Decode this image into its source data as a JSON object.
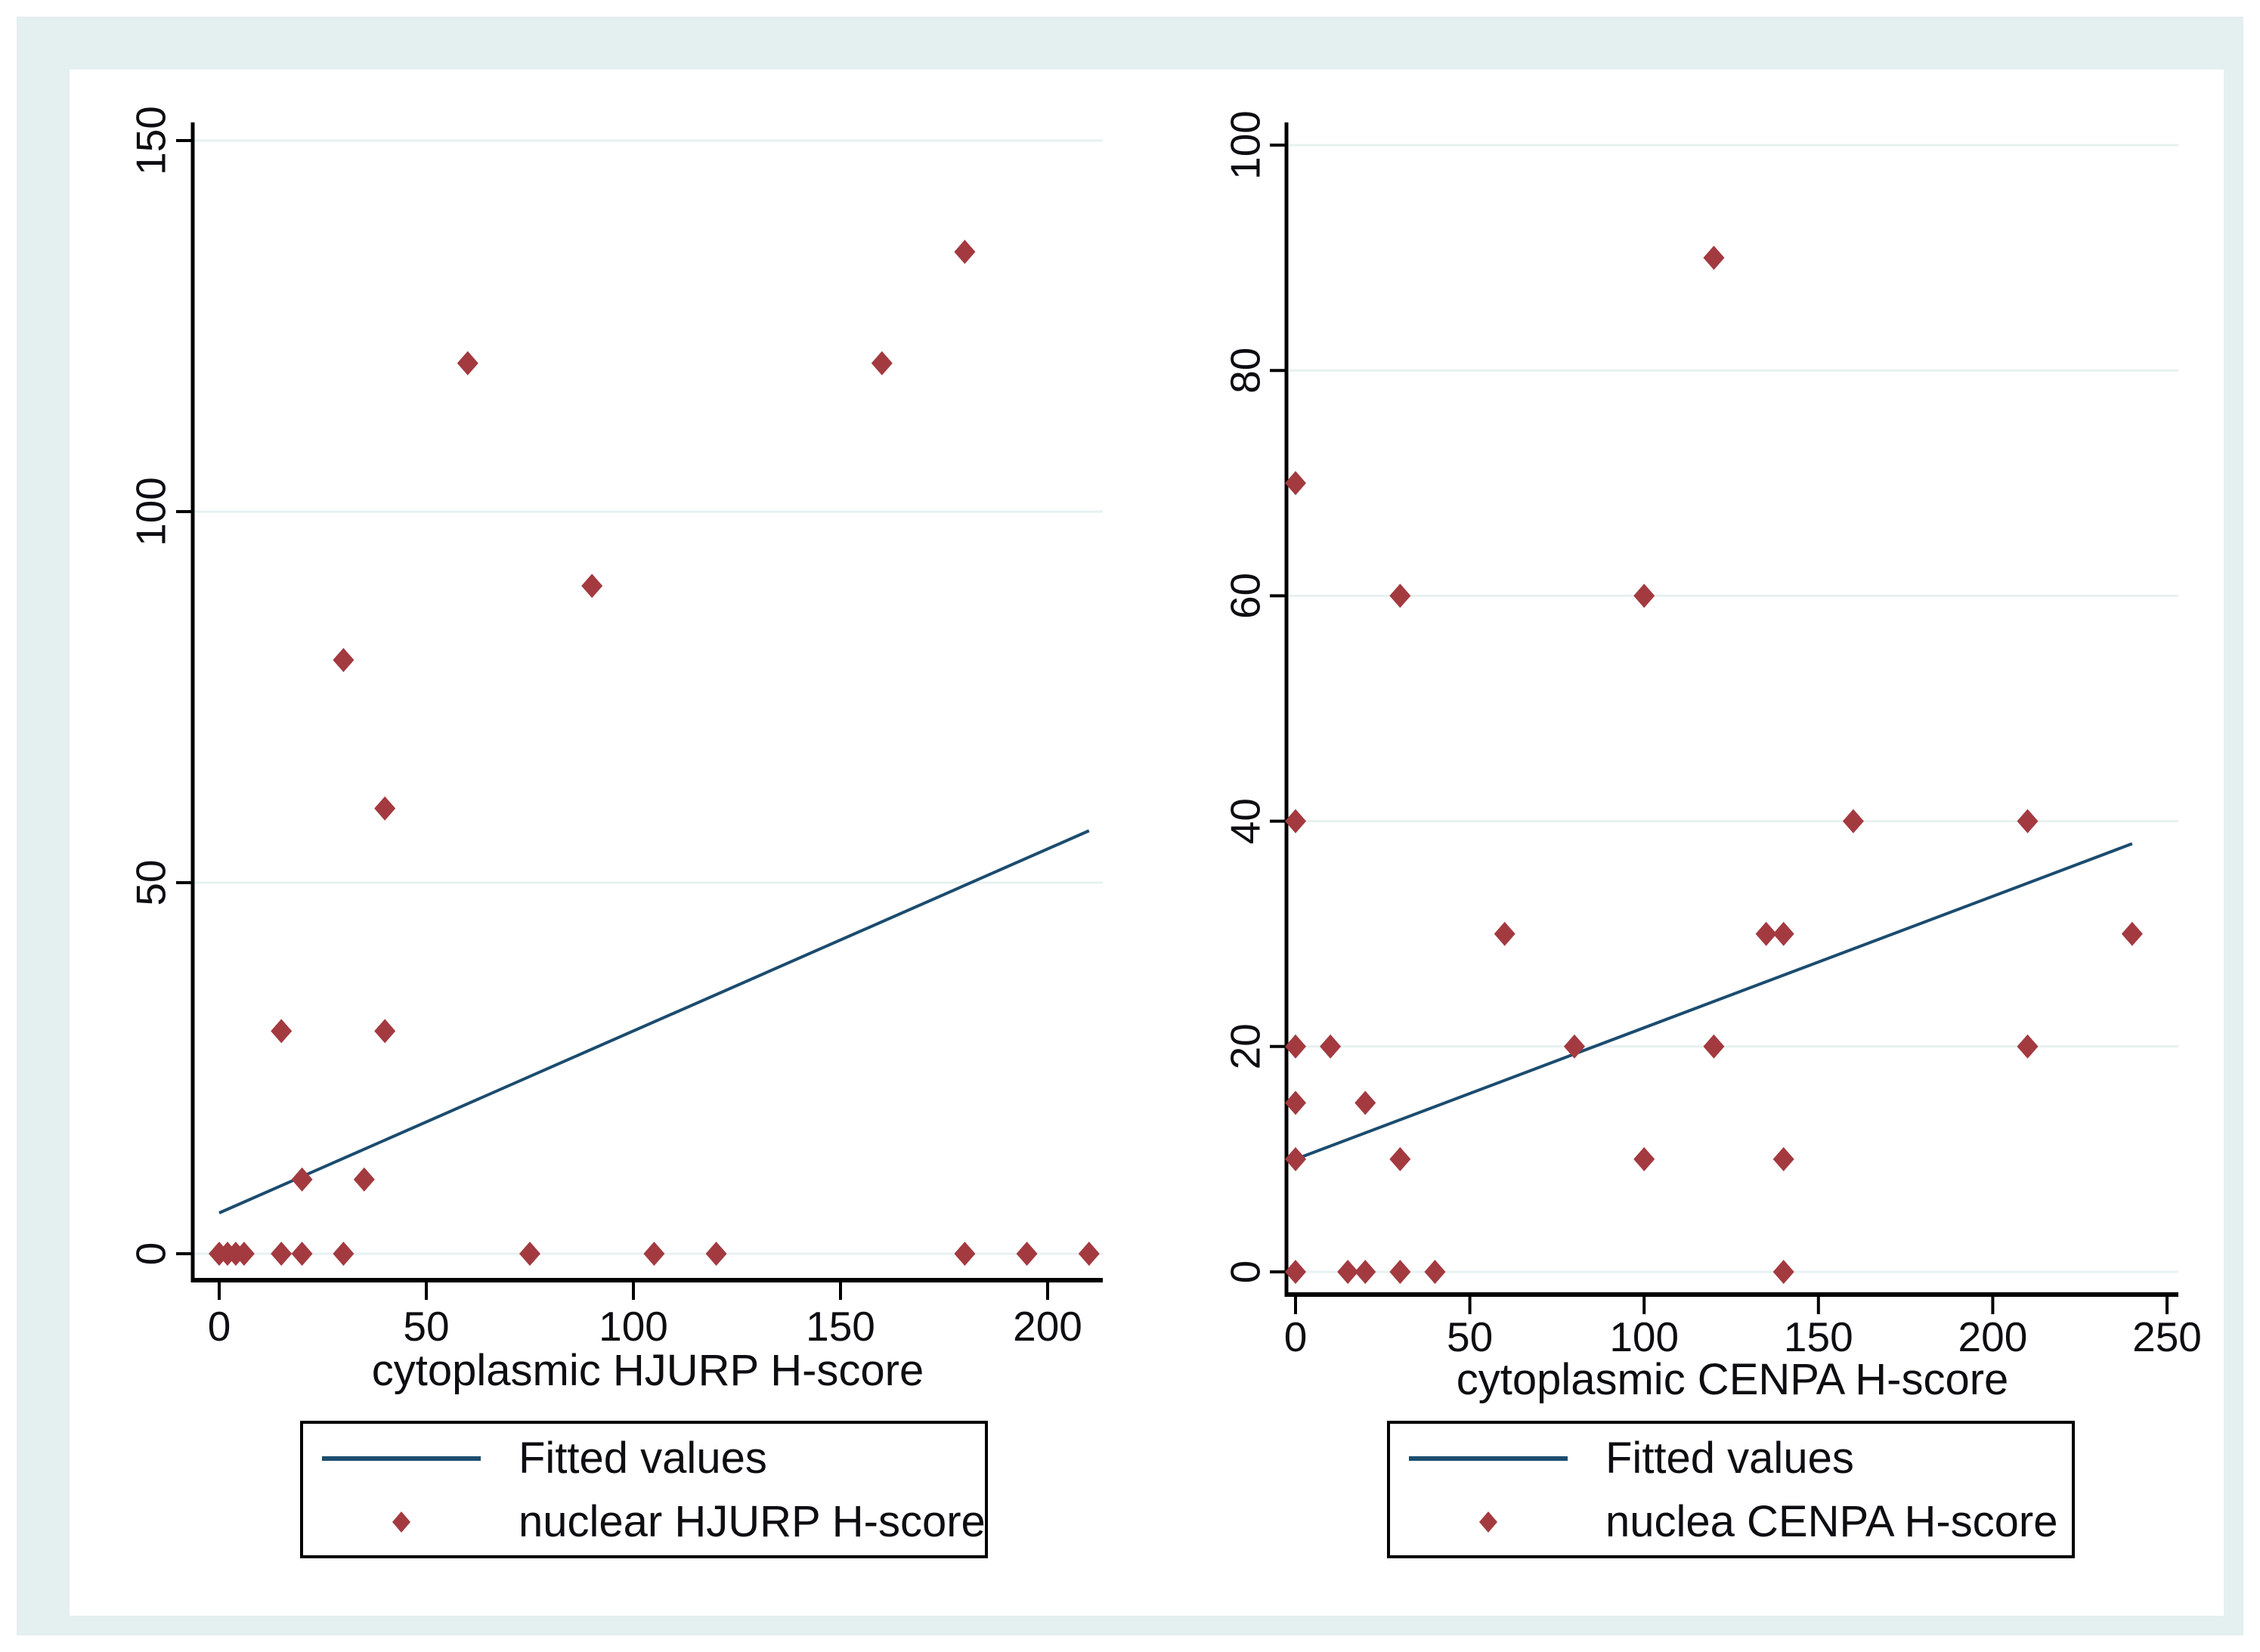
{
  "colors": {
    "frame_background": "#e4efef",
    "plot_background": "#ffffff",
    "gridline": "#e7f1f1",
    "axis": "#000000",
    "marker": "#a33a40",
    "fitted_line": "#1b4c6f",
    "text": "#0d0d12"
  },
  "chart_data": [
    {
      "type": "scatter",
      "title": "",
      "xlabel": "cytoplasmic HJURP H-score",
      "ylabel": "",
      "xlim": [
        0,
        210
      ],
      "ylim": [
        0,
        150
      ],
      "xticks": [
        0,
        50,
        100,
        150,
        200
      ],
      "yticks": [
        0,
        50,
        100,
        150
      ],
      "grid": "horizontal",
      "legend_position": "below",
      "series": [
        {
          "name": "Fitted values",
          "type": "line",
          "points": [
            [
              0,
              5.5
            ],
            [
              210,
              57
            ]
          ]
        },
        {
          "name": "nuclear HJURP H-score",
          "type": "scatter",
          "points": [
            [
              0,
              0
            ],
            [
              2,
              0
            ],
            [
              4,
              0
            ],
            [
              6,
              0
            ],
            [
              15,
              0
            ],
            [
              20,
              0
            ],
            [
              30,
              0
            ],
            [
              75,
              0
            ],
            [
              105,
              0
            ],
            [
              120,
              0
            ],
            [
              180,
              0
            ],
            [
              195,
              0
            ],
            [
              210,
              0
            ],
            [
              20,
              10
            ],
            [
              35,
              10
            ],
            [
              15,
              30
            ],
            [
              40,
              30
            ],
            [
              40,
              60
            ],
            [
              30,
              80
            ],
            [
              90,
              90
            ],
            [
              60,
              120
            ],
            [
              160,
              120
            ],
            [
              180,
              135
            ]
          ]
        }
      ]
    },
    {
      "type": "scatter",
      "title": "",
      "xlabel": "cytoplasmic CENPA H-score",
      "ylabel": "",
      "xlim": [
        0,
        250
      ],
      "ylim": [
        0,
        100
      ],
      "xticks": [
        0,
        50,
        100,
        150,
        200,
        250
      ],
      "yticks": [
        0,
        20,
        40,
        60,
        80,
        100
      ],
      "grid": "horizontal",
      "legend_position": "below",
      "series": [
        {
          "name": "Fitted values",
          "type": "line",
          "points": [
            [
              0,
              10
            ],
            [
              240,
              38
            ]
          ]
        },
        {
          "name": "nuclea CENPA H-score",
          "type": "scatter",
          "points": [
            [
              0,
              0
            ],
            [
              15,
              0
            ],
            [
              20,
              0
            ],
            [
              30,
              0
            ],
            [
              40,
              0
            ],
            [
              140,
              0
            ],
            [
              0,
              10
            ],
            [
              30,
              10
            ],
            [
              100,
              10
            ],
            [
              140,
              10
            ],
            [
              0,
              15
            ],
            [
              20,
              15
            ],
            [
              0,
              20
            ],
            [
              10,
              20
            ],
            [
              80,
              20
            ],
            [
              120,
              20
            ],
            [
              210,
              20
            ],
            [
              60,
              30
            ],
            [
              135,
              30
            ],
            [
              140,
              30
            ],
            [
              240,
              30
            ],
            [
              0,
              40
            ],
            [
              160,
              40
            ],
            [
              210,
              40
            ],
            [
              30,
              60
            ],
            [
              100,
              60
            ],
            [
              0,
              70
            ],
            [
              120,
              90
            ]
          ]
        }
      ]
    }
  ]
}
